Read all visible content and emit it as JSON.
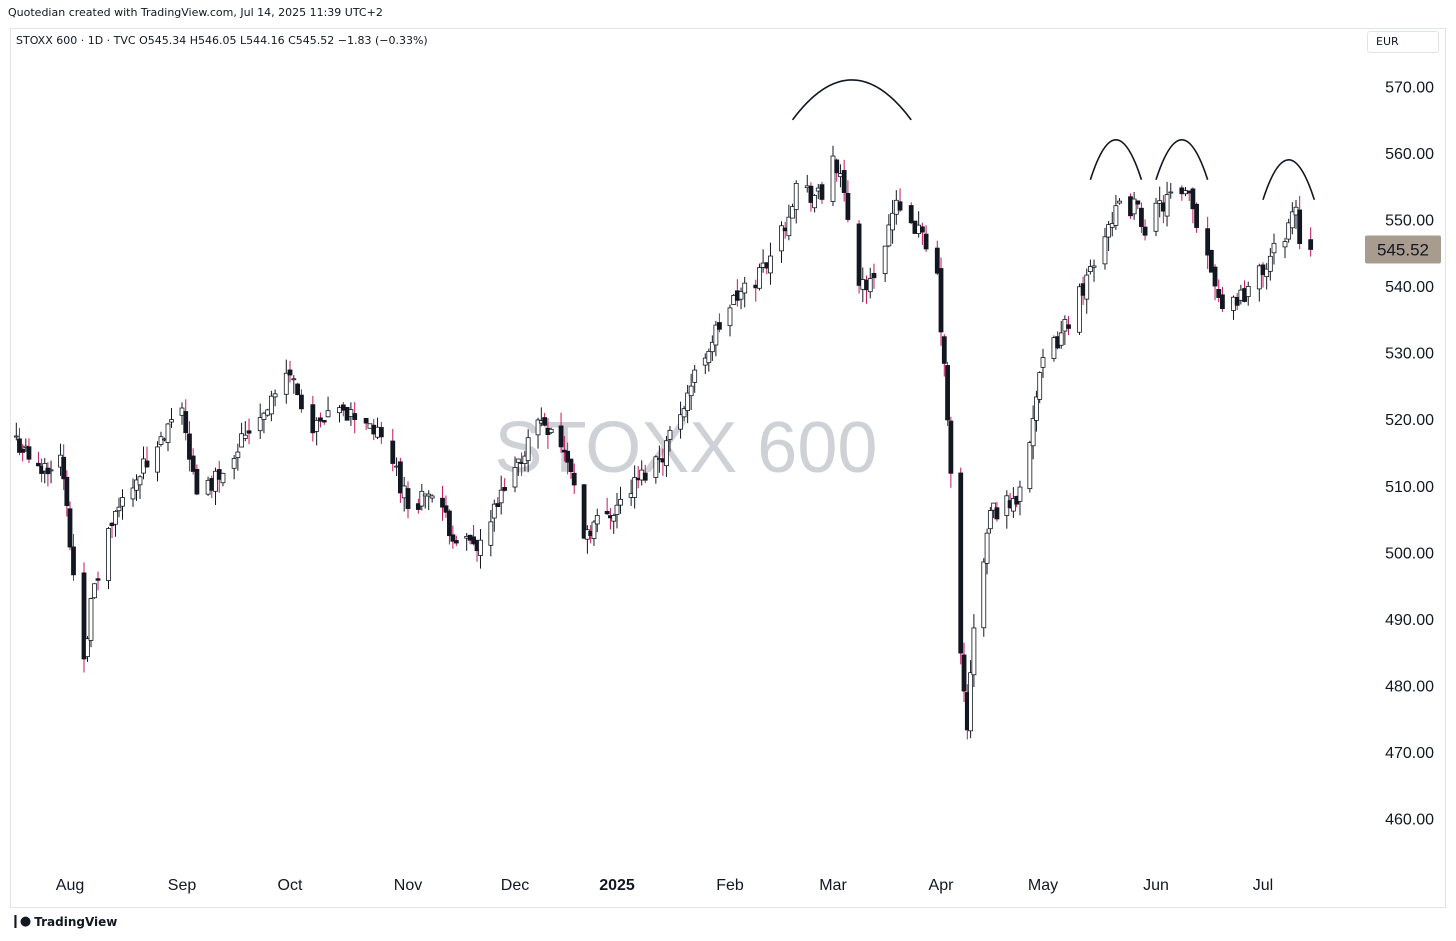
{
  "header": {
    "credit": "Quotedian created with TradingView.com, Jul 14, 2025 11:39 UTC+2",
    "legend": "STOXX 600 · 1D · TVC  O545.34  H546.05  L544.16  C545.52  −1.83 (−0.33%)",
    "currency": "EUR"
  },
  "watermark": "STOXX 600",
  "footer": {
    "brand": "TradingView"
  },
  "colors": {
    "up": "#ffffff",
    "down_body": "#131722",
    "down_wick": "#c2185b",
    "price_tag": "#a89c8e"
  },
  "chart_data": {
    "type": "candlestick",
    "y_ticks": [
      "570.00",
      "560.00",
      "550.00",
      "540.00",
      "530.00",
      "520.00",
      "510.00",
      "500.00",
      "490.00",
      "480.00",
      "470.00",
      "460.00"
    ],
    "y_tick_values": [
      570,
      560,
      550,
      540,
      530,
      520,
      510,
      500,
      490,
      480,
      470,
      460
    ],
    "ylim": [
      456,
      574
    ],
    "x_labels": [
      {
        "label": "Aug",
        "date": "2024-08-01"
      },
      {
        "label": "Sep",
        "date": "2024-09-02"
      },
      {
        "label": "Oct",
        "date": "2024-10-01"
      },
      {
        "label": "Nov",
        "date": "2024-11-01"
      },
      {
        "label": "Dec",
        "date": "2024-12-02"
      },
      {
        "label": "2025",
        "date": "2025-01-02",
        "bold": true
      },
      {
        "label": "Feb",
        "date": "2025-02-03"
      },
      {
        "label": "Mar",
        "date": "2025-03-03"
      },
      {
        "label": "Apr",
        "date": "2025-04-01"
      },
      {
        "label": "May",
        "date": "2025-05-02"
      },
      {
        "label": "Jun",
        "date": "2025-06-02"
      },
      {
        "label": "Jul",
        "date": "2025-07-01"
      }
    ],
    "last_price": "545.52",
    "closes": [
      {
        "date": "2024-07-15",
        "close": 517
      },
      {
        "date": "2024-07-22",
        "close": 512
      },
      {
        "date": "2024-07-29",
        "close": 515
      },
      {
        "date": "2024-08-02",
        "close": 497
      },
      {
        "date": "2024-08-05",
        "close": 485
      },
      {
        "date": "2024-08-07",
        "close": 492
      },
      {
        "date": "2024-08-12",
        "close": 503
      },
      {
        "date": "2024-08-19",
        "close": 511
      },
      {
        "date": "2024-08-26",
        "close": 515
      },
      {
        "date": "2024-09-02",
        "close": 522
      },
      {
        "date": "2024-09-06",
        "close": 508
      },
      {
        "date": "2024-09-12",
        "close": 512
      },
      {
        "date": "2024-09-19",
        "close": 518
      },
      {
        "date": "2024-09-26",
        "close": 523
      },
      {
        "date": "2024-10-01",
        "close": 527
      },
      {
        "date": "2024-10-07",
        "close": 518
      },
      {
        "date": "2024-10-14",
        "close": 521
      },
      {
        "date": "2024-10-21",
        "close": 520
      },
      {
        "date": "2024-10-28",
        "close": 514
      },
      {
        "date": "2024-11-01",
        "close": 507
      },
      {
        "date": "2024-11-07",
        "close": 509
      },
      {
        "date": "2024-11-14",
        "close": 503
      },
      {
        "date": "2024-11-21",
        "close": 500
      },
      {
        "date": "2024-11-27",
        "close": 507
      },
      {
        "date": "2024-12-02",
        "close": 512
      },
      {
        "date": "2024-12-09",
        "close": 520
      },
      {
        "date": "2024-12-13",
        "close": 519
      },
      {
        "date": "2024-12-18",
        "close": 514
      },
      {
        "date": "2024-12-23",
        "close": 503
      },
      {
        "date": "2025-01-02",
        "close": 507
      },
      {
        "date": "2025-01-10",
        "close": 512
      },
      {
        "date": "2025-01-15",
        "close": 515
      },
      {
        "date": "2025-01-22",
        "close": 524
      },
      {
        "date": "2025-01-28",
        "close": 531
      },
      {
        "date": "2025-02-03",
        "close": 537
      },
      {
        "date": "2025-02-10",
        "close": 541
      },
      {
        "date": "2025-02-17",
        "close": 548
      },
      {
        "date": "2025-02-21",
        "close": 555
      },
      {
        "date": "2025-02-28",
        "close": 553
      },
      {
        "date": "2025-03-03",
        "close": 560
      },
      {
        "date": "2025-03-06",
        "close": 553
      },
      {
        "date": "2025-03-10",
        "close": 541
      },
      {
        "date": "2025-03-13",
        "close": 540
      },
      {
        "date": "2025-03-18",
        "close": 549
      },
      {
        "date": "2025-03-21",
        "close": 553
      },
      {
        "date": "2025-03-26",
        "close": 548
      },
      {
        "date": "2025-03-31",
        "close": 541
      },
      {
        "date": "2025-04-03",
        "close": 520
      },
      {
        "date": "2025-04-07",
        "close": 484
      },
      {
        "date": "2025-04-09",
        "close": 474
      },
      {
        "date": "2025-04-11",
        "close": 488
      },
      {
        "date": "2025-04-16",
        "close": 506
      },
      {
        "date": "2025-04-24",
        "close": 508
      },
      {
        "date": "2025-05-02",
        "close": 528
      },
      {
        "date": "2025-05-09",
        "close": 535
      },
      {
        "date": "2025-05-16",
        "close": 544
      },
      {
        "date": "2025-05-21",
        "close": 551
      },
      {
        "date": "2025-05-27",
        "close": 552
      },
      {
        "date": "2025-05-30",
        "close": 549
      },
      {
        "date": "2025-06-05",
        "close": 553
      },
      {
        "date": "2025-06-11",
        "close": 553
      },
      {
        "date": "2025-06-16",
        "close": 545
      },
      {
        "date": "2025-06-20",
        "close": 537
      },
      {
        "date": "2025-06-26",
        "close": 539
      },
      {
        "date": "2025-07-02",
        "close": 543
      },
      {
        "date": "2025-07-07",
        "close": 548
      },
      {
        "date": "2025-07-10",
        "close": 552
      },
      {
        "date": "2025-07-11",
        "close": 547
      },
      {
        "date": "2025-07-14",
        "close": 545.52
      }
    ],
    "annotations": [
      {
        "type": "arc",
        "from": "2025-02-20",
        "to": "2025-03-24",
        "level": 568
      },
      {
        "type": "arc",
        "from": "2025-05-15",
        "to": "2025-05-29",
        "level": 559
      },
      {
        "type": "arc",
        "from": "2025-06-02",
        "to": "2025-06-16",
        "level": 559
      },
      {
        "type": "arc",
        "from": "2025-07-01",
        "to": "2025-07-15",
        "level": 556
      }
    ]
  }
}
